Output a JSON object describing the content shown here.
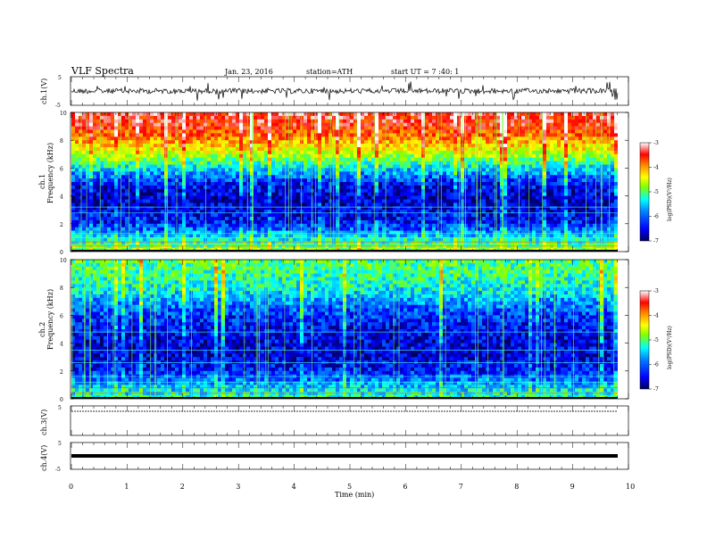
{
  "header": {
    "title": "VLF Spectra",
    "date": "Jan. 23, 2016",
    "station": "station=ATH",
    "start": "start UT = 7 :40: 1"
  },
  "chart_data": [
    {
      "type": "line",
      "panel": "ch1-waveform",
      "ylabel": "ch.1(V)",
      "ylim": [
        -5,
        5
      ],
      "yticks": [
        "5",
        "-5"
      ],
      "description_series": "noisy waveform centered near 0 V, amplitude about ±1.5 V with spikes",
      "x_range_min": [
        0,
        9.8
      ]
    },
    {
      "type": "heatmap",
      "panel": "ch1-spectrogram",
      "ylabel": "ch.1 Frequency (kHz)",
      "ylim": [
        0,
        10
      ],
      "yticks": [
        "0",
        "2",
        "4",
        "6",
        "8",
        "10"
      ],
      "x_range_min": [
        0,
        9.8
      ],
      "intensity_by_freq_kHz": [
        {
          "freq": 0,
          "logpsd": -4.8
        },
        {
          "freq": 1,
          "logpsd": -5.6
        },
        {
          "freq": 2,
          "logpsd": -6.4
        },
        {
          "freq": 3,
          "logpsd": -6.6
        },
        {
          "freq": 4,
          "logpsd": -6.7
        },
        {
          "freq": 5,
          "logpsd": -6.4
        },
        {
          "freq": 6,
          "logpsd": -5.6
        },
        {
          "freq": 7,
          "logpsd": -4.8
        },
        {
          "freq": 8,
          "logpsd": -4.1
        },
        {
          "freq": 9,
          "logpsd": -3.6
        },
        {
          "freq": 10,
          "logpsd": -3.4
        }
      ]
    },
    {
      "type": "heatmap",
      "panel": "ch2-spectrogram",
      "ylabel": "ch.2 Frequency (kHz)",
      "ylim": [
        0,
        10
      ],
      "yticks": [
        "0",
        "2",
        "4",
        "6",
        "8",
        "10"
      ],
      "x_range_min": [
        0,
        9.8
      ],
      "intensity_by_freq_kHz": [
        {
          "freq": 0,
          "logpsd": -5.3
        },
        {
          "freq": 1,
          "logpsd": -5.8
        },
        {
          "freq": 2,
          "logpsd": -6.4
        },
        {
          "freq": 3,
          "logpsd": -6.6
        },
        {
          "freq": 4,
          "logpsd": -6.6
        },
        {
          "freq": 5,
          "logpsd": -6.5
        },
        {
          "freq": 6,
          "logpsd": -6.3
        },
        {
          "freq": 7,
          "logpsd": -5.9
        },
        {
          "freq": 8,
          "logpsd": -5.5
        },
        {
          "freq": 9,
          "logpsd": -5.3
        },
        {
          "freq": 10,
          "logpsd": -5.2
        }
      ]
    },
    {
      "type": "line",
      "panel": "ch3-waveform",
      "ylabel": "ch.3(V)",
      "ylim": [
        -5,
        5
      ],
      "yticks": [
        "5",
        "-5"
      ],
      "level_volts": 0
    },
    {
      "type": "line",
      "panel": "ch4-waveform",
      "ylabel": "ch.4(V)",
      "ylim": [
        -5,
        5
      ],
      "yticks": [
        "5",
        "-5"
      ],
      "level_volts": 0
    }
  ],
  "colorbar": {
    "label": "log(PSD)(V²/Hz)",
    "range": [
      -7,
      -3
    ],
    "ticks": [
      "-3",
      "-4",
      "-5",
      "-6",
      "-7"
    ],
    "colors": [
      "#000060",
      "#0000ff",
      "#0080ff",
      "#00ffff",
      "#80ff00",
      "#ffff00",
      "#ff8000",
      "#ff0000",
      "#ffffff"
    ]
  },
  "xaxis": {
    "label": "Time (min)",
    "ticks": [
      "0",
      "1",
      "2",
      "3",
      "4",
      "5",
      "6",
      "7",
      "8",
      "9",
      "10"
    ],
    "range": [
      0,
      10
    ]
  }
}
